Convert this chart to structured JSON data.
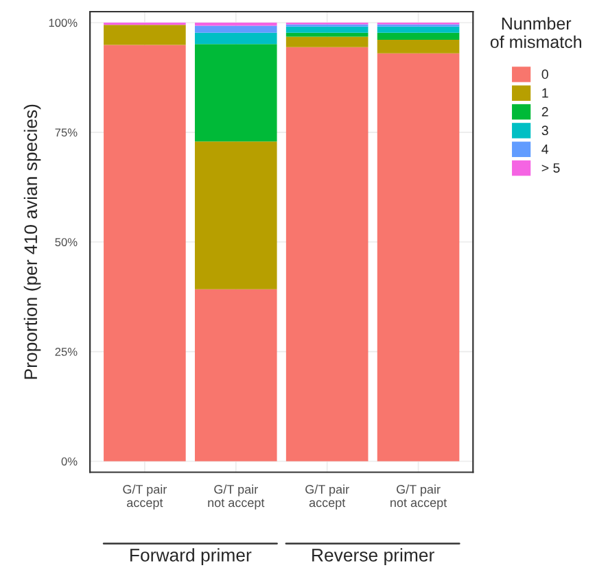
{
  "chart_data": {
    "type": "bar",
    "stacked": true,
    "ylabel": "Proportion (per 410 avian species)",
    "legend_title": "Nunmber\nof mismatch",
    "legend": "right",
    "grid": true,
    "categories": [
      "G/T pair\naccept",
      "G/T pair\nnot accept",
      "G/T pair\naccept",
      "G/T pair\nnot accept"
    ],
    "series": [
      {
        "name": "0",
        "color": "#f8766d",
        "values": [
          94.9,
          39.2,
          94.4,
          93.0
        ]
      },
      {
        "name": "1",
        "color": "#b79f00",
        "values": [
          4.6,
          33.7,
          2.4,
          3.1
        ]
      },
      {
        "name": "2",
        "color": "#00ba38",
        "values": [
          0,
          22.2,
          0.9,
          1.6
        ]
      },
      {
        "name": "3",
        "color": "#00bfc4",
        "values": [
          0,
          2.6,
          1.4,
          1.4
        ]
      },
      {
        "name": "4",
        "color": "#619cff",
        "values": [
          0,
          1.6,
          0.5,
          0.5
        ]
      },
      {
        "name": "> 5",
        "color": "#f564e3",
        "values": [
          0.5,
          0.7,
          0.4,
          0.4
        ]
      }
    ],
    "ylim": [
      -2.5,
      102.5
    ],
    "yticks": [
      {
        "value": 0,
        "label": "0%"
      },
      {
        "value": 25,
        "label": "25%"
      },
      {
        "value": 50,
        "label": "50%"
      },
      {
        "value": 75,
        "label": "75%"
      },
      {
        "value": 100,
        "label": "100%"
      }
    ],
    "annotations": [
      "Forward primer",
      "Reverse primer"
    ]
  }
}
